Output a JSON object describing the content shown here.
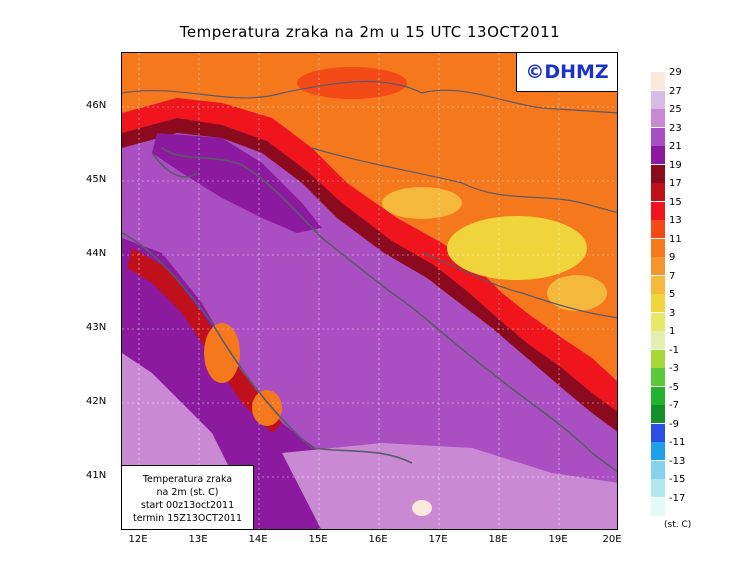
{
  "title": "Temperatura zraka na 2m u 15 UTC 13OCT2011",
  "logo": "©DHMZ",
  "info_box": {
    "line1": "Temperatura zraka",
    "line2": "na 2m (st. C)",
    "line3": "start 00z13oct2011",
    "line4": "termin 15Z13OCT2011"
  },
  "lat_labels": [
    "46N",
    "45N",
    "44N",
    "43N",
    "42N",
    "41N"
  ],
  "lon_labels": [
    "12E",
    "13E",
    "14E",
    "15E",
    "16E",
    "17E",
    "18E",
    "19E",
    "20E"
  ],
  "legend": {
    "units": "(st. C)",
    "entries": [
      {
        "label": "29",
        "color": "#fbe9dc"
      },
      {
        "label": "27",
        "color": "#d9bce3"
      },
      {
        "label": "25",
        "color": "#c98ad3"
      },
      {
        "label": "23",
        "color": "#a94fc2"
      },
      {
        "label": "21",
        "color": "#8b1a9e"
      },
      {
        "label": "19",
        "color": "#8c0a1e"
      },
      {
        "label": "17",
        "color": "#c0101c"
      },
      {
        "label": "15",
        "color": "#f0141c"
      },
      {
        "label": "13",
        "color": "#f34a18"
      },
      {
        "label": "11",
        "color": "#f5781c"
      },
      {
        "label": "9",
        "color": "#f4962e"
      },
      {
        "label": "7",
        "color": "#f4b83c"
      },
      {
        "label": "5",
        "color": "#f0d43c"
      },
      {
        "label": "3",
        "color": "#e9e86a"
      },
      {
        "label": "1",
        "color": "#e4f0b0"
      },
      {
        "label": "-1",
        "color": "#a6d83a"
      },
      {
        "label": "-3",
        "color": "#5cc83a"
      },
      {
        "label": "-5",
        "color": "#22b22e"
      },
      {
        "label": "-7",
        "color": "#14902a"
      },
      {
        "label": "-9",
        "color": "#2a4fe6"
      },
      {
        "label": "-11",
        "color": "#1ea0ea"
      },
      {
        "label": "-13",
        "color": "#86d2ec"
      },
      {
        "label": "-15",
        "color": "#b4e6ee"
      },
      {
        "label": "-17",
        "color": "#e4faf8"
      }
    ]
  }
}
